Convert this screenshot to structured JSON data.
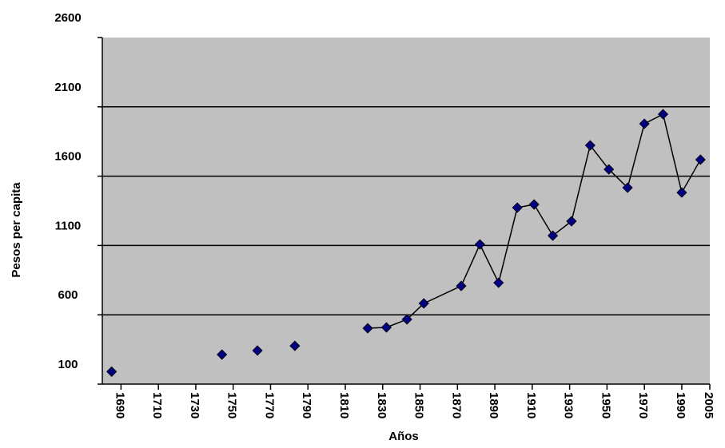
{
  "chart_data": {
    "type": "line",
    "x_label": "Años",
    "y_label": "Pesos per capita",
    "xlim": [
      1680,
      2005
    ],
    "xticks": [
      1690,
      1710,
      1730,
      1750,
      1770,
      1790,
      1810,
      1830,
      1850,
      1870,
      1890,
      1910,
      1930,
      1950,
      1970,
      1990,
      2005
    ],
    "ylim": [
      100,
      2600
    ],
    "yticks": [
      100,
      600,
      1100,
      1600,
      2100,
      2600
    ],
    "grid": true,
    "background": "#c0c0c0",
    "line_color": "#000000",
    "series": [
      {
        "color": "#000080",
        "line": false,
        "x": [
          1685,
          1744,
          1763,
          1783
        ],
        "values": [
          190,
          313,
          342,
          376
        ]
      },
      {
        "color": "#000080",
        "line": true,
        "x": [
          1822,
          1832,
          1843,
          1852,
          1872,
          1882,
          1892,
          1902,
          1911,
          1921,
          1931,
          1941,
          1951,
          1961,
          1970,
          1980,
          1990,
          2000
        ],
        "values": [
          503,
          509,
          567,
          682,
          808,
          1108,
          831,
          1373,
          1396,
          1171,
          1275,
          1822,
          1649,
          1517,
          1978,
          2047,
          1482,
          1719
        ]
      }
    ]
  }
}
